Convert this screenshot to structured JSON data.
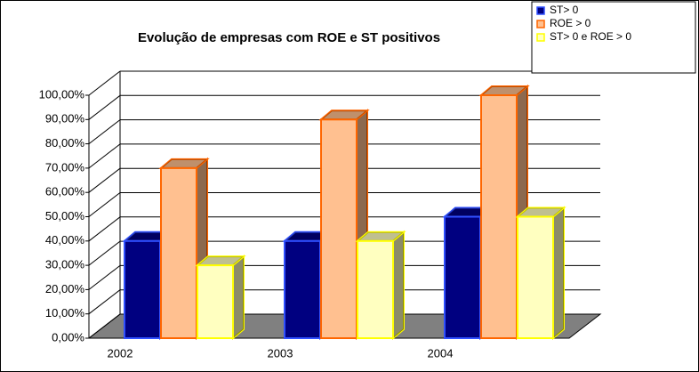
{
  "chart_data": {
    "type": "bar3d",
    "title": "Evolução de empresas com ROE e ST positivos",
    "categories": [
      "2002",
      "2003",
      "2004"
    ],
    "series": [
      {
        "name": "ST> 0",
        "color": "#000080",
        "edgecolor": "#3050ff",
        "values": [
          40,
          40,
          50
        ]
      },
      {
        "name": "ROE > 0",
        "color": "#ffc090",
        "edgecolor": "#ff6600",
        "values": [
          70,
          90,
          100
        ]
      },
      {
        "name": "ST> 0 e ROE > 0",
        "color": "#ffffc0",
        "edgecolor": "#ffff00",
        "values": [
          30,
          40,
          50
        ]
      }
    ],
    "ylim": [
      0,
      100
    ],
    "yticks": [
      {
        "value": 0,
        "label": "0,00%"
      },
      {
        "value": 10,
        "label": "10,00%"
      },
      {
        "value": 20,
        "label": "20,00%"
      },
      {
        "value": 30,
        "label": "30,00%"
      },
      {
        "value": 40,
        "label": "40,00%"
      },
      {
        "value": 50,
        "label": "50,00%"
      },
      {
        "value": 60,
        "label": "60,00%"
      },
      {
        "value": 70,
        "label": "70,00%"
      },
      {
        "value": 80,
        "label": "80,00%"
      },
      {
        "value": 90,
        "label": "90,00%"
      },
      {
        "value": 100,
        "label": "100,00%"
      }
    ],
    "grid": true,
    "legend": "top-right"
  }
}
